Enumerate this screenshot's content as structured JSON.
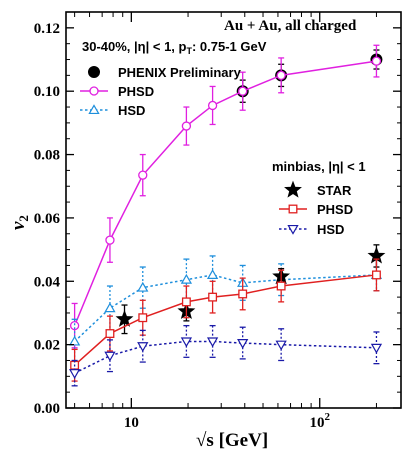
{
  "chart_data": {
    "type": "line",
    "x_scale": "log",
    "xlim": [
      4.5,
      270
    ],
    "ylim": [
      0,
      0.125
    ],
    "xlabel": "√s  [GeV]",
    "ylabel": "v",
    "ylabel_sub": "2",
    "x_ticks": [
      {
        "value": 10,
        "label": "10"
      },
      {
        "value": 100,
        "label": "10",
        "sup": "2"
      }
    ],
    "y_ticks": [
      "0.00",
      "0.02",
      "0.04",
      "0.06",
      "0.08",
      "0.10",
      "0.12"
    ],
    "y_tick_values": [
      0,
      0.02,
      0.04,
      0.06,
      0.08,
      0.1,
      0.12
    ],
    "annotations": {
      "title": "Au + Au, all charged",
      "centrality": "30-40%, |η| < 1, p",
      "centrality_sub": "T",
      "centrality_tail": ": 0.75-1 GeV",
      "minbias": "minbias, |η| < 1"
    },
    "series": [
      {
        "name": "PHENIX Preliminary",
        "marker": "filled-circle",
        "color": "#000000",
        "line": "none",
        "x": [
          39,
          62.4,
          200
        ],
        "y": [
          0.1,
          0.105,
          0.11
        ],
        "err": [
          0.0035,
          0.0035,
          0.003
        ]
      },
      {
        "name": "PHSD",
        "marker": "open-circle",
        "color": "#e020e0",
        "line": "solid",
        "x": [
          5,
          7.7,
          11.5,
          19.6,
          27,
          39,
          62.4,
          200
        ],
        "y": [
          0.026,
          0.053,
          0.0735,
          0.089,
          0.0955,
          0.1,
          0.105,
          0.1095
        ],
        "err": [
          0.007,
          0.007,
          0.0065,
          0.006,
          0.006,
          0.006,
          0.0055,
          0.005
        ]
      },
      {
        "name": "HSD",
        "marker": "open-triangle-up",
        "color": "#1e8fdc",
        "line": "dotted",
        "x": [
          5,
          7.7,
          11.5,
          19.6,
          27,
          39,
          62.4,
          200
        ],
        "y": [
          0.021,
          0.0315,
          0.038,
          0.0405,
          0.042,
          0.0395,
          0.0405,
          0.042
        ],
        "err": [
          0.007,
          0.007,
          0.0065,
          0.0065,
          0.006,
          0.0055,
          0.005,
          0.005
        ]
      },
      {
        "name": "STAR",
        "marker": "filled-star",
        "color": "#000000",
        "line": "none",
        "x": [
          9.2,
          19.6,
          62.4,
          200
        ],
        "y": [
          0.028,
          0.0305,
          0.0415,
          0.048
        ],
        "err": [
          0.0045,
          0.003,
          0.0025,
          0.0035
        ]
      },
      {
        "name": "PHSD",
        "marker": "open-square",
        "color": "#e02020",
        "line": "solid",
        "x": [
          5,
          7.7,
          11.5,
          19.6,
          27,
          39,
          62.4,
          200
        ],
        "y": [
          0.0135,
          0.0235,
          0.0285,
          0.0335,
          0.035,
          0.036,
          0.0385,
          0.042
        ],
        "err": [
          0.005,
          0.0055,
          0.0055,
          0.005,
          0.005,
          0.005,
          0.005,
          0.005
        ]
      },
      {
        "name": "HSD",
        "marker": "open-triangle-down",
        "color": "#1a1aa8",
        "line": "dotted",
        "x": [
          5,
          7.7,
          11.5,
          19.6,
          27,
          39,
          62.4,
          200
        ],
        "y": [
          0.011,
          0.0165,
          0.0195,
          0.021,
          0.021,
          0.0205,
          0.02,
          0.019
        ],
        "err": [
          0.004,
          0.005,
          0.005,
          0.005,
          0.005,
          0.005,
          0.005,
          0.005
        ]
      }
    ]
  }
}
